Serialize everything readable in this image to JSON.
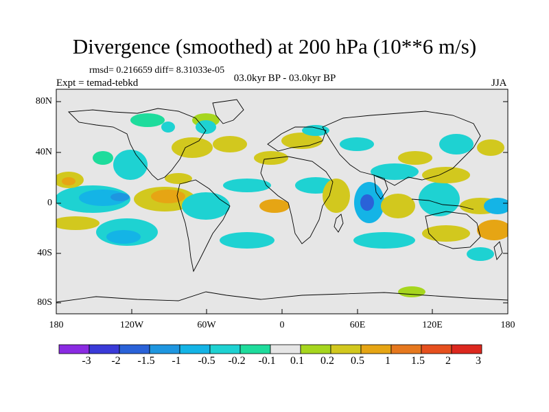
{
  "map": {
    "title": "Divergence (smoothed) at 200 hPa (10**6 m/s)",
    "stats": "rmsd= 0.216659 diff= 8.31033e-05",
    "subtitle": "03.0kyr BP - 03.0kyr BP",
    "experiment": "Expt = temad-tebkd",
    "season": "JJA",
    "projection": "cylindrical equidistant",
    "lon_range": [
      -180,
      180
    ],
    "lat_range": [
      -90,
      90
    ],
    "lat_ticks": [
      "80N",
      "40N",
      "0",
      "40S",
      "80S"
    ],
    "lon_ticks": [
      "180",
      "120W",
      "60W",
      "0",
      "60E",
      "120E",
      "180"
    ]
  },
  "colorbar": {
    "labels": [
      "-3",
      "-2",
      "-1.5",
      "-1",
      "-0.5",
      "-0.2",
      "-0.1",
      "0.1",
      "0.2",
      "0.5",
      "1",
      "1.5",
      "2",
      "3"
    ],
    "colors": [
      "#8a2be2",
      "#3a3ad8",
      "#2a62d8",
      "#1e96e0",
      "#14b4e6",
      "#1ed2d2",
      "#1edc9c",
      "#e6e6e6",
      "#a6d61e",
      "#d2c81e",
      "#e6a514",
      "#e6781e",
      "#e6501e",
      "#dc281e"
    ]
  },
  "colors": {
    "neutral": "#e6e6e6",
    "coast": "#000000"
  }
}
